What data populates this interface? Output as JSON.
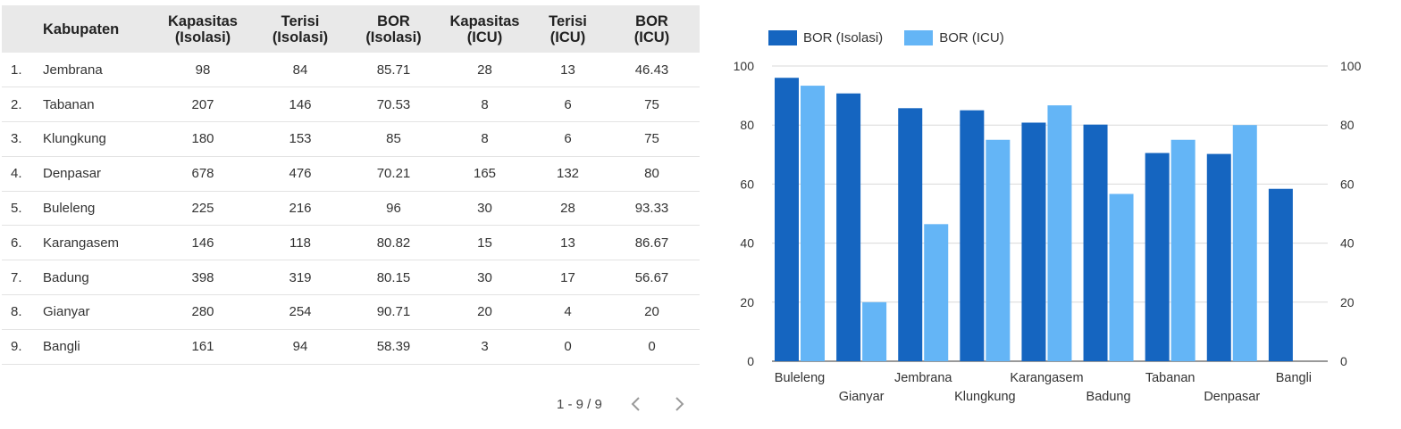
{
  "table": {
    "headers": {
      "name": "Kabupaten",
      "cap_iso": [
        "Kapasitas",
        "(Isolasi)"
      ],
      "fill_iso": [
        "Terisi",
        "(Isolasi)"
      ],
      "bor_iso": [
        "BOR",
        "(Isolasi)"
      ],
      "cap_icu": [
        "Kapasitas",
        "(ICU)"
      ],
      "fill_icu": [
        "Terisi",
        "(ICU)"
      ],
      "bor_icu": [
        "BOR",
        "(ICU)"
      ]
    },
    "rows": [
      {
        "idx": "1.",
        "name": "Jembrana",
        "cap_iso": "98",
        "fill_iso": "84",
        "bor_iso": "85.71",
        "cap_icu": "28",
        "fill_icu": "13",
        "bor_icu": "46.43"
      },
      {
        "idx": "2.",
        "name": "Tabanan",
        "cap_iso": "207",
        "fill_iso": "146",
        "bor_iso": "70.53",
        "cap_icu": "8",
        "fill_icu": "6",
        "bor_icu": "75"
      },
      {
        "idx": "3.",
        "name": "Klungkung",
        "cap_iso": "180",
        "fill_iso": "153",
        "bor_iso": "85",
        "cap_icu": "8",
        "fill_icu": "6",
        "bor_icu": "75"
      },
      {
        "idx": "4.",
        "name": "Denpasar",
        "cap_iso": "678",
        "fill_iso": "476",
        "bor_iso": "70.21",
        "cap_icu": "165",
        "fill_icu": "132",
        "bor_icu": "80"
      },
      {
        "idx": "5.",
        "name": "Buleleng",
        "cap_iso": "225",
        "fill_iso": "216",
        "bor_iso": "96",
        "cap_icu": "30",
        "fill_icu": "28",
        "bor_icu": "93.33"
      },
      {
        "idx": "6.",
        "name": "Karangasem",
        "cap_iso": "146",
        "fill_iso": "118",
        "bor_iso": "80.82",
        "cap_icu": "15",
        "fill_icu": "13",
        "bor_icu": "86.67"
      },
      {
        "idx": "7.",
        "name": "Badung",
        "cap_iso": "398",
        "fill_iso": "319",
        "bor_iso": "80.15",
        "cap_icu": "30",
        "fill_icu": "17",
        "bor_icu": "56.67"
      },
      {
        "idx": "8.",
        "name": "Gianyar",
        "cap_iso": "280",
        "fill_iso": "254",
        "bor_iso": "90.71",
        "cap_icu": "20",
        "fill_icu": "4",
        "bor_icu": "20"
      },
      {
        "idx": "9.",
        "name": "Bangli",
        "cap_iso": "161",
        "fill_iso": "94",
        "bor_iso": "58.39",
        "cap_icu": "3",
        "fill_icu": "0",
        "bor_icu": "0"
      }
    ]
  },
  "pagination": {
    "label": "1 - 9 / 9",
    "prev_icon": "chevron-left-icon",
    "next_icon": "chevron-right-icon"
  },
  "chart_data": {
    "type": "bar",
    "categories": [
      "Buleleng",
      "Gianyar",
      "Jembrana",
      "Klungkung",
      "Karangasem",
      "Badung",
      "Tabanan",
      "Denpasar",
      "Bangli"
    ],
    "series": [
      {
        "name": "BOR (Isolasi)",
        "color": "#1565c0",
        "values": [
          96,
          90.71,
          85.71,
          85,
          80.82,
          80.15,
          70.53,
          70.21,
          58.39
        ]
      },
      {
        "name": "BOR (ICU)",
        "color": "#64b5f6",
        "values": [
          93.33,
          20,
          46.43,
          75,
          86.67,
          56.67,
          75,
          80,
          0
        ]
      }
    ],
    "ylim": [
      0,
      100
    ],
    "yticks": [
      0,
      20,
      40,
      60,
      80,
      100
    ],
    "y2ticks": [
      0,
      20,
      40,
      60,
      80,
      100
    ],
    "grid": true,
    "legend": "top-left",
    "title": "",
    "xlabel": "",
    "ylabel": ""
  }
}
